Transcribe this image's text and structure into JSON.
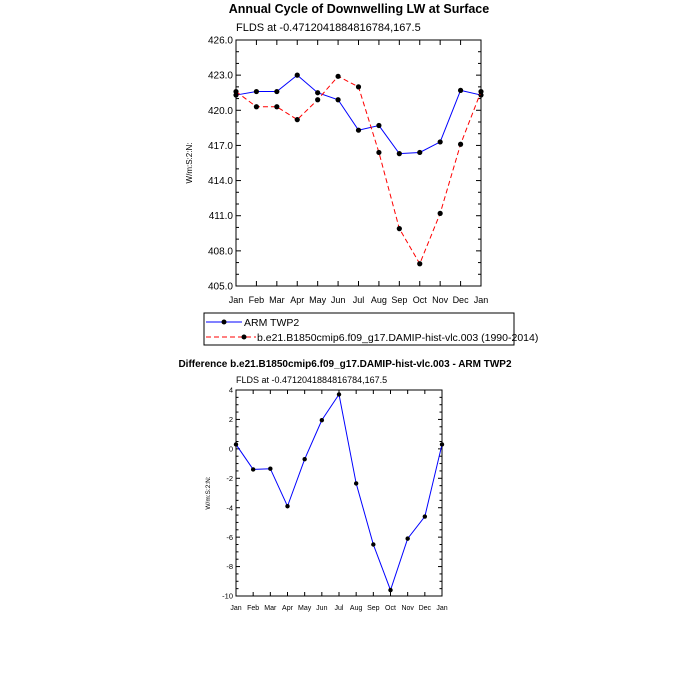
{
  "chart_data": [
    {
      "type": "line",
      "title": "Annual Cycle of Downwelling LW at Surface",
      "subtitle": "FLDS at -0.4712041884816784,167.5",
      "xlabel": "",
      "ylabel": "W/m:S:2:N:",
      "categories": [
        "Jan",
        "Feb",
        "Mar",
        "Apr",
        "May",
        "Jun",
        "Jul",
        "Aug",
        "Sep",
        "Oct",
        "Nov",
        "Dec",
        "Jan"
      ],
      "ylim": [
        405.0,
        426.0
      ],
      "yticks": [
        "405.0",
        "408.0",
        "411.0",
        "414.0",
        "417.0",
        "420.0",
        "423.0",
        "426.0"
      ],
      "legend_position": "bottom-left",
      "series": [
        {
          "name": "ARM TWP2",
          "color": "#0000ff",
          "dash": "solid",
          "values": [
            421.3,
            421.6,
            421.6,
            423.0,
            421.5,
            420.9,
            418.3,
            418.7,
            416.3,
            416.4,
            417.3,
            421.7,
            421.3
          ]
        },
        {
          "name": "b.e21.B1850cmip6.f09_g17.DAMIP-hist-vlc.003 (1990-2014)",
          "color": "#ff0000",
          "dash": "dashed",
          "values": [
            421.6,
            420.3,
            420.3,
            419.2,
            420.9,
            422.9,
            422.0,
            416.4,
            409.9,
            406.9,
            411.2,
            417.1,
            421.6
          ]
        }
      ]
    },
    {
      "type": "line",
      "title": "Difference b.e21.B1850cmip6.f09_g17.DAMIP-hist-vlc.003 - ARM TWP2",
      "subtitle": "FLDS at -0.4712041884816784,167.5",
      "xlabel": "",
      "ylabel": "W/m:S:2:N:",
      "categories": [
        "Jan",
        "Feb",
        "Mar",
        "Apr",
        "May",
        "Jun",
        "Jul",
        "Aug",
        "Sep",
        "Oct",
        "Nov",
        "Dec",
        "Jan"
      ],
      "ylim": [
        -10,
        4
      ],
      "yticks": [
        "-10",
        "-8",
        "-6",
        "-4",
        "-2",
        "0",
        "2",
        "4"
      ],
      "series": [
        {
          "name": "Difference",
          "color": "#0000ff",
          "dash": "solid",
          "values": [
            0.3,
            -1.4,
            -1.35,
            -3.9,
            -0.7,
            1.95,
            3.7,
            -2.35,
            -6.5,
            -9.6,
            -6.1,
            -4.6,
            0.3
          ]
        }
      ]
    }
  ]
}
